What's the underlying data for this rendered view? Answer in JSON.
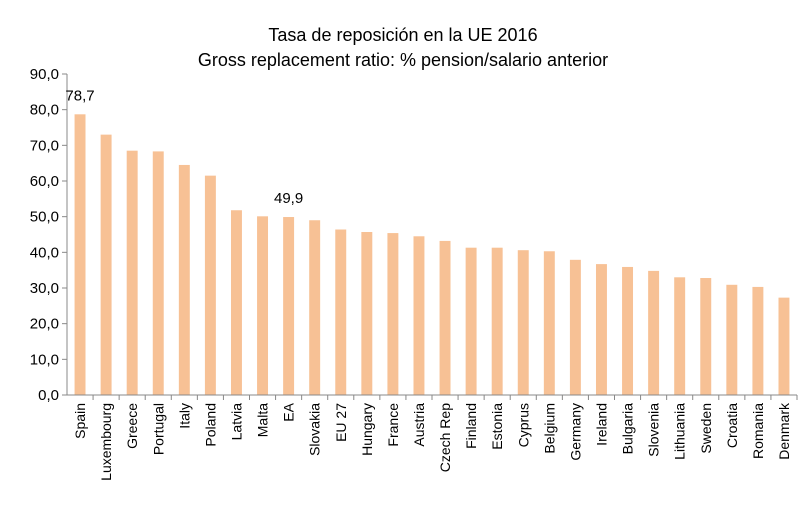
{
  "chart_data": {
    "type": "bar",
    "title": "Tasa de reposición en la UE 2016",
    "subtitle": "Gross replacement ratio: % pension/salario anterior",
    "xlabel": "",
    "ylabel": "",
    "ylim": [
      0,
      90
    ],
    "yticks": [
      "0,0",
      "10,0",
      "20,0",
      "30,0",
      "40,0",
      "50,0",
      "60,0",
      "70,0",
      "80,0",
      "90,0"
    ],
    "grid": false,
    "legend": "none",
    "bar_color": "#F7C195",
    "categories": [
      "Spain",
      "Luxembourg",
      "Greece",
      "Portugal",
      "Italy",
      "Poland",
      "Latvia",
      "Malta",
      "EA",
      "Slovakia",
      "EU 27",
      "Hungary",
      "France",
      "Austria",
      "Czech Rep",
      "Finland",
      "Estonia",
      "Cyprus",
      "Belgium",
      "Germany",
      "Ireland",
      "Bulgaria",
      "Slovenia",
      "Lithuania",
      "Sweden",
      "Croatia",
      "Romania",
      "Denmark"
    ],
    "values": [
      78.7,
      73.0,
      68.5,
      68.3,
      64.5,
      61.5,
      51.8,
      50.1,
      49.9,
      49.0,
      46.4,
      45.7,
      45.4,
      44.5,
      43.2,
      41.3,
      41.3,
      40.6,
      40.3,
      37.9,
      36.7,
      35.9,
      34.8,
      33.0,
      32.8,
      30.9,
      30.3,
      27.3
    ],
    "data_labels": [
      {
        "category": "Spain",
        "text": "78,7"
      },
      {
        "category": "EA",
        "text": "49,9"
      }
    ]
  }
}
